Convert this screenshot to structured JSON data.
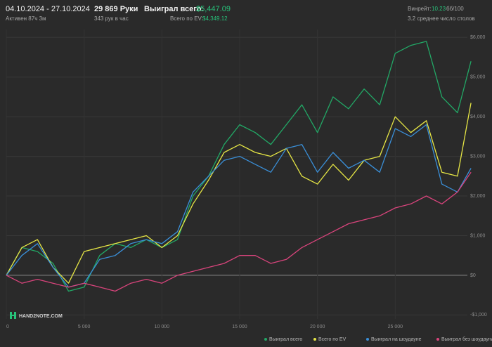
{
  "header": {
    "period": "04.10.2024 - 27.10.2024",
    "active": "Активен 87ч 3м",
    "hands": "29 869 Руки",
    "hands_per_hour": "343 рук в час",
    "won_label": "Выиграл всего:",
    "won_value": "$5,447.09",
    "ev_label": "Всего по EV:",
    "ev_value": "$4,349.12",
    "winrate_label": "Винрейт:",
    "winrate_value": "10.23",
    "winrate_unit": "бб/100",
    "tables": "3.2 среднее число столов",
    "logo": "HAND2NOTE.COM"
  },
  "chart_data": {
    "type": "line",
    "x": [
      0,
      1000,
      2000,
      3000,
      4000,
      5000,
      6000,
      7000,
      8000,
      9000,
      10000,
      11000,
      12000,
      13000,
      14000,
      15000,
      16000,
      17000,
      18000,
      19000,
      20000,
      21000,
      22000,
      23000,
      24000,
      25000,
      26000,
      27000,
      28000,
      29000,
      29869
    ],
    "series": [
      {
        "name": "Выиграл всего",
        "color": "#22a866",
        "values": [
          0,
          700,
          600,
          300,
          -400,
          -300,
          500,
          800,
          700,
          900,
          700,
          900,
          2000,
          2500,
          3300,
          3800,
          3600,
          3300,
          3800,
          4300,
          3600,
          4500,
          4200,
          4700,
          4300,
          5600,
          5800,
          5900,
          4500,
          4100,
          5400
        ]
      },
      {
        "name": "Всего по EV",
        "color": "#e6e645",
        "values": [
          0,
          700,
          900,
          200,
          -200,
          600,
          700,
          800,
          900,
          1000,
          700,
          1000,
          1800,
          2400,
          3100,
          3300,
          3100,
          3000,
          3200,
          2500,
          2300,
          2800,
          2400,
          2900,
          3000,
          4000,
          3600,
          3900,
          2600,
          2500,
          4349
        ]
      },
      {
        "name": "Выиграл на шоудауне",
        "color": "#3a8fd8",
        "values": [
          0,
          500,
          800,
          200,
          -300,
          -200,
          400,
          500,
          800,
          900,
          800,
          1100,
          2100,
          2500,
          2900,
          3000,
          2800,
          2600,
          3200,
          3300,
          2600,
          3100,
          2700,
          2900,
          2600,
          3700,
          3500,
          3800,
          2300,
          2100,
          2700
        ]
      },
      {
        "name": "Выиграл без шоудауна",
        "color": "#d9447c",
        "values": [
          0,
          -200,
          -100,
          -200,
          -300,
          -200,
          -300,
          -400,
          -200,
          -100,
          -200,
          0,
          100,
          200,
          300,
          500,
          500,
          300,
          400,
          700,
          900,
          1100,
          1300,
          1400,
          1500,
          1700,
          1800,
          2000,
          1800,
          2100,
          2600
        ]
      }
    ],
    "xlim": [
      0,
      30000
    ],
    "ylim": [
      -1100,
      6200
    ],
    "xticks": [
      0,
      {
        "value": 5000,
        "label": "5 000"
      },
      {
        "value": 10000,
        "label": "10 000"
      },
      {
        "value": 15000,
        "label": "15 000"
      },
      {
        "value": 20000,
        "label": "20 000"
      },
      {
        "value": 25000,
        "label": "25 000"
      }
    ],
    "yticks": [
      {
        "value": -1000,
        "label": "-$1,000"
      },
      {
        "value": 0,
        "label": "$0"
      },
      {
        "value": 1000,
        "label": "$1,000"
      },
      {
        "value": 2000,
        "label": "$2,000"
      },
      {
        "value": 3000,
        "label": "$3,000"
      },
      {
        "value": 4000,
        "label": "$4,000"
      },
      {
        "value": 5000,
        "label": "$5,000"
      },
      {
        "value": 6000,
        "label": "$6,000"
      }
    ],
    "grid": true
  }
}
